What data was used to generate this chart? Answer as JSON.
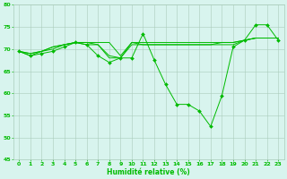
{
  "xlabel": "Humidité relative (%)",
  "background_color": "#d8f4ee",
  "grid_color": "#aaccbb",
  "line_color": "#00bb00",
  "xlim": [
    -0.5,
    23.5
  ],
  "ylim": [
    45,
    80
  ],
  "yticks": [
    45,
    50,
    55,
    60,
    65,
    70,
    75,
    80
  ],
  "xticks": [
    0,
    1,
    2,
    3,
    4,
    5,
    6,
    7,
    8,
    9,
    10,
    11,
    12,
    13,
    14,
    15,
    16,
    17,
    18,
    19,
    20,
    21,
    22,
    23
  ],
  "series": [
    [
      69.5,
      68.5,
      69.0,
      69.5,
      70.5,
      71.5,
      71.0,
      68.5,
      67.0,
      68.0,
      68.0,
      73.5,
      67.5,
      62.0,
      57.5,
      57.5,
      56.0,
      52.5,
      59.5,
      70.5,
      72.0,
      75.5,
      75.5,
      72.0
    ],
    [
      69.5,
      68.5,
      69.5,
      70.5,
      71.0,
      71.5,
      71.0,
      71.0,
      68.0,
      68.0,
      71.5,
      71.0,
      71.0,
      71.0,
      71.0,
      71.0,
      71.0,
      71.0,
      71.0,
      71.0,
      72.0,
      72.5,
      72.5,
      72.5
    ],
    [
      69.5,
      69.0,
      69.5,
      70.5,
      71.0,
      71.5,
      71.5,
      71.0,
      68.5,
      68.0,
      71.0,
      71.0,
      71.0,
      71.0,
      71.0,
      71.0,
      71.0,
      71.0,
      71.5,
      71.5,
      72.0,
      72.5,
      72.5,
      72.5
    ],
    [
      69.5,
      69.0,
      69.5,
      70.0,
      71.0,
      71.5,
      71.5,
      71.5,
      71.5,
      68.5,
      71.5,
      71.5,
      71.5,
      71.5,
      71.5,
      71.5,
      71.5,
      71.5,
      71.5,
      71.5,
      72.0,
      72.5,
      72.5,
      72.5
    ]
  ],
  "marker": "D",
  "markersize": 2.0,
  "linewidth": 0.7,
  "tick_fontsize": 4.5,
  "xlabel_fontsize": 5.5
}
